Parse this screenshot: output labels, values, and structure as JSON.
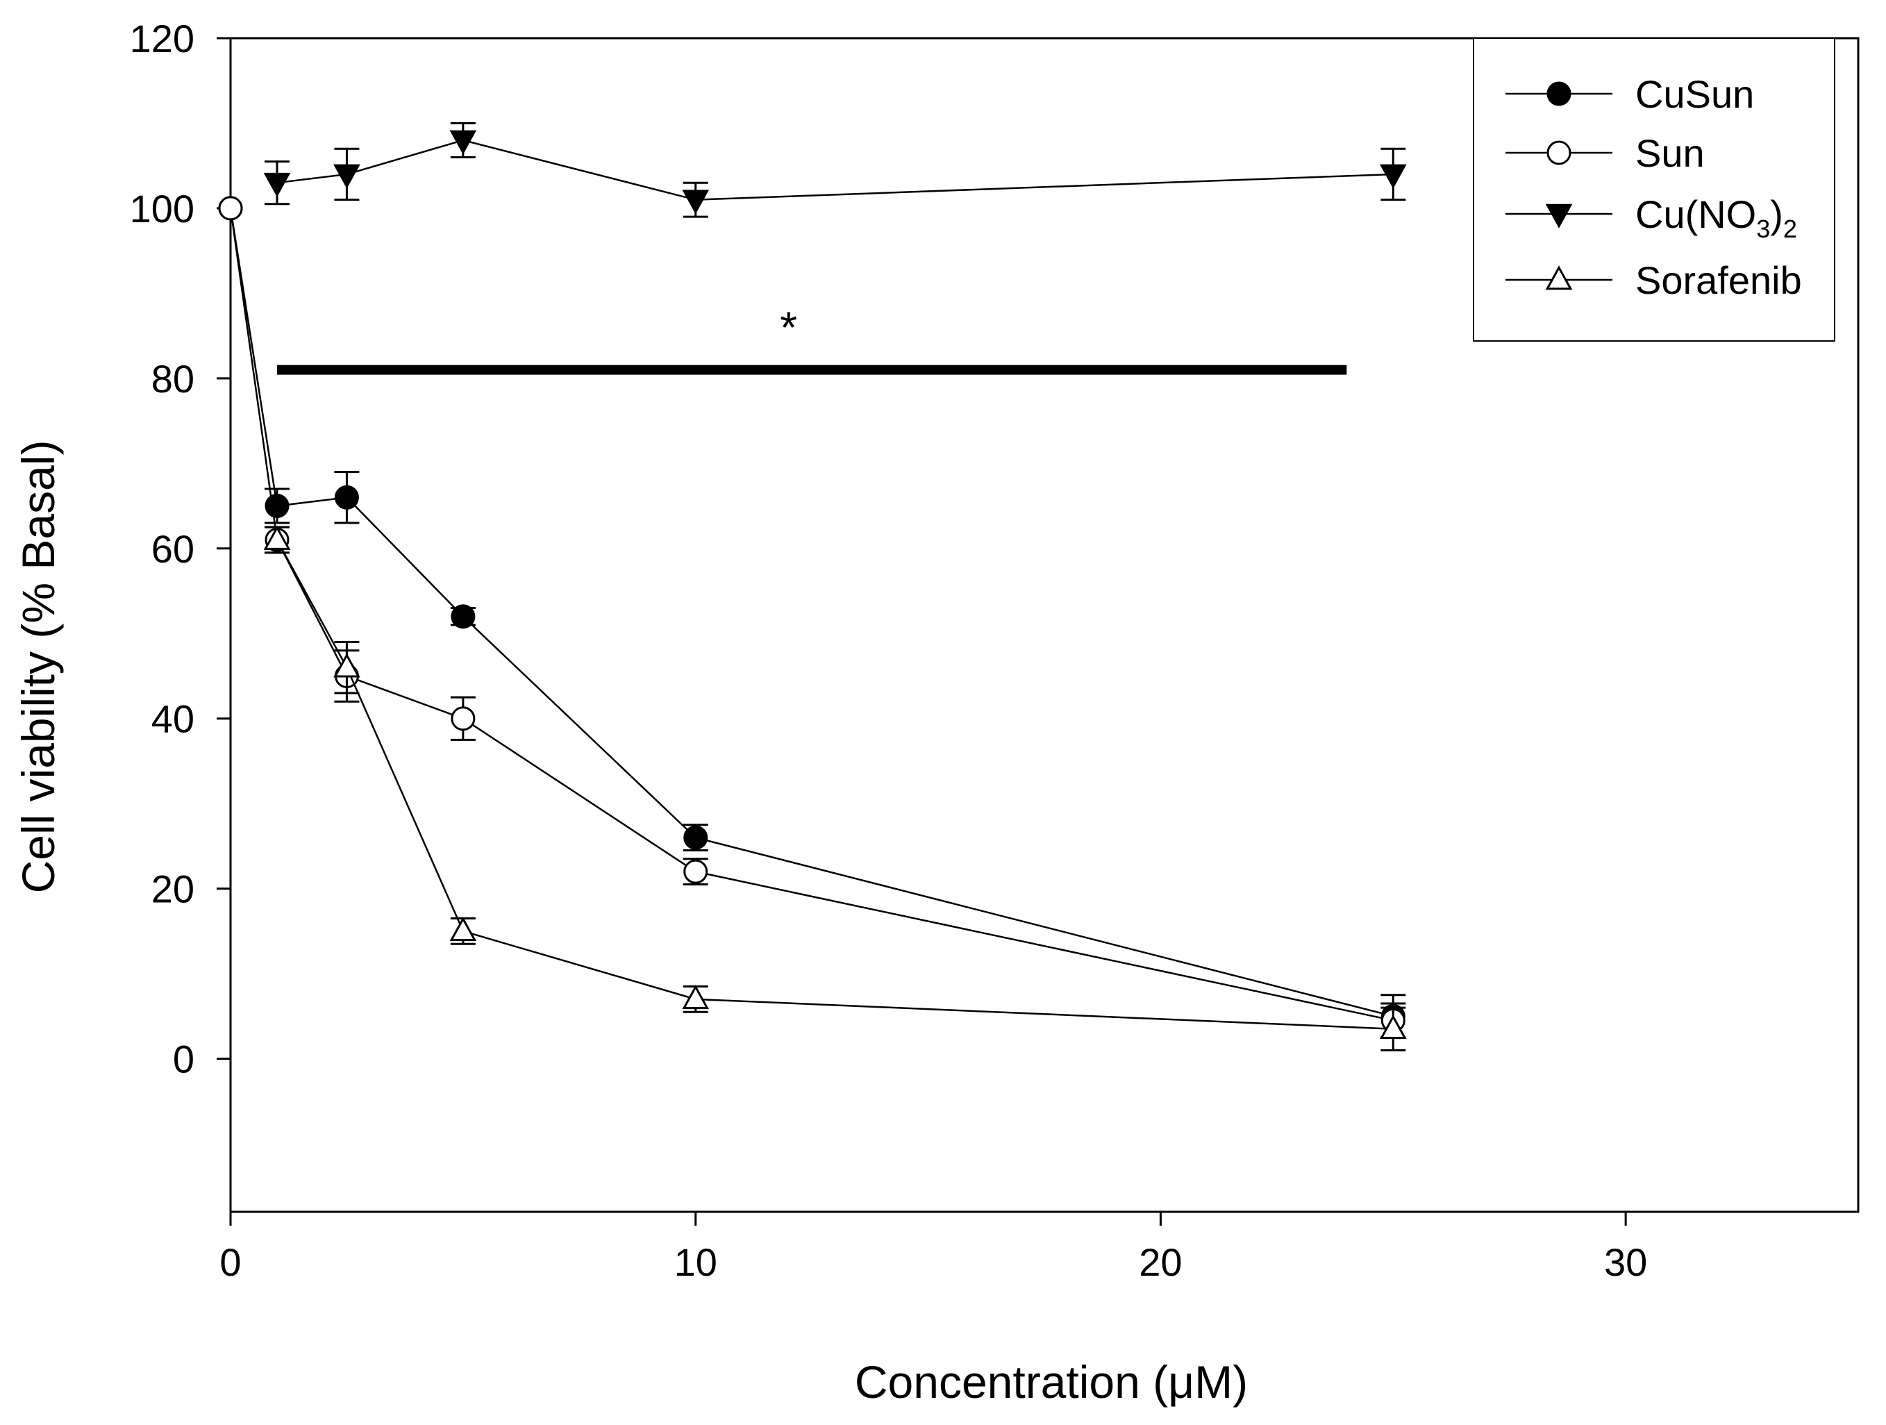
{
  "chart_data": {
    "type": "line",
    "title": "",
    "xlabel": "Concentration (μM)",
    "ylabel": "Cell viability (% Basal)",
    "xlim": [
      0,
      35
    ],
    "ylim": [
      -18,
      120
    ],
    "xticks": [
      0,
      10,
      20,
      30
    ],
    "yticks": [
      0,
      20,
      40,
      60,
      80,
      100,
      120
    ],
    "xtick_labels": [
      "0",
      "10",
      "20",
      "30"
    ],
    "ytick_labels": [
      "0",
      "20",
      "40",
      "60",
      "80",
      "100",
      "120"
    ],
    "grid": false,
    "legend_position": "top-right",
    "series": [
      {
        "name": "CuSun",
        "legend_label": "CuSun",
        "marker": "circle",
        "filled": true,
        "x": [
          0,
          1,
          2.5,
          5,
          10,
          25
        ],
        "y": [
          100,
          65,
          66,
          52,
          26,
          5
        ],
        "err": [
          0,
          2,
          3,
          1,
          1.5,
          2.5
        ]
      },
      {
        "name": "Sun",
        "legend_label": "Sun",
        "marker": "circle",
        "filled": false,
        "x": [
          0,
          1,
          2.5,
          5,
          10,
          25
        ],
        "y": [
          100,
          61,
          45,
          40,
          22,
          4.5
        ],
        "err": [
          0,
          1.5,
          3,
          2.5,
          1.5,
          2
        ]
      },
      {
        "name": "Cu(NO3)2",
        "legend_label": "Cu(NO",
        "legend_sub1": "3",
        "legend_mid": ")",
        "legend_sub2": "2",
        "marker": "triangle-down",
        "filled": true,
        "x": [
          1,
          2.5,
          5,
          10,
          25
        ],
        "y": [
          103,
          104,
          108,
          101,
          104
        ],
        "err": [
          2.5,
          3,
          2,
          2,
          3
        ]
      },
      {
        "name": "Sorafenib",
        "legend_label": "Sorafenib",
        "marker": "triangle-up",
        "filled": false,
        "x": [
          1,
          2.5,
          5,
          10,
          25
        ],
        "y": [
          61,
          46,
          15,
          7,
          3.5
        ],
        "err": [
          1.5,
          3,
          1.5,
          1.5,
          2.5
        ]
      }
    ],
    "annotations": [
      {
        "text": "*",
        "x": 12,
        "y": 86
      }
    ],
    "significance_bar": {
      "x_start": 1,
      "x_end": 24,
      "y": 81
    }
  }
}
